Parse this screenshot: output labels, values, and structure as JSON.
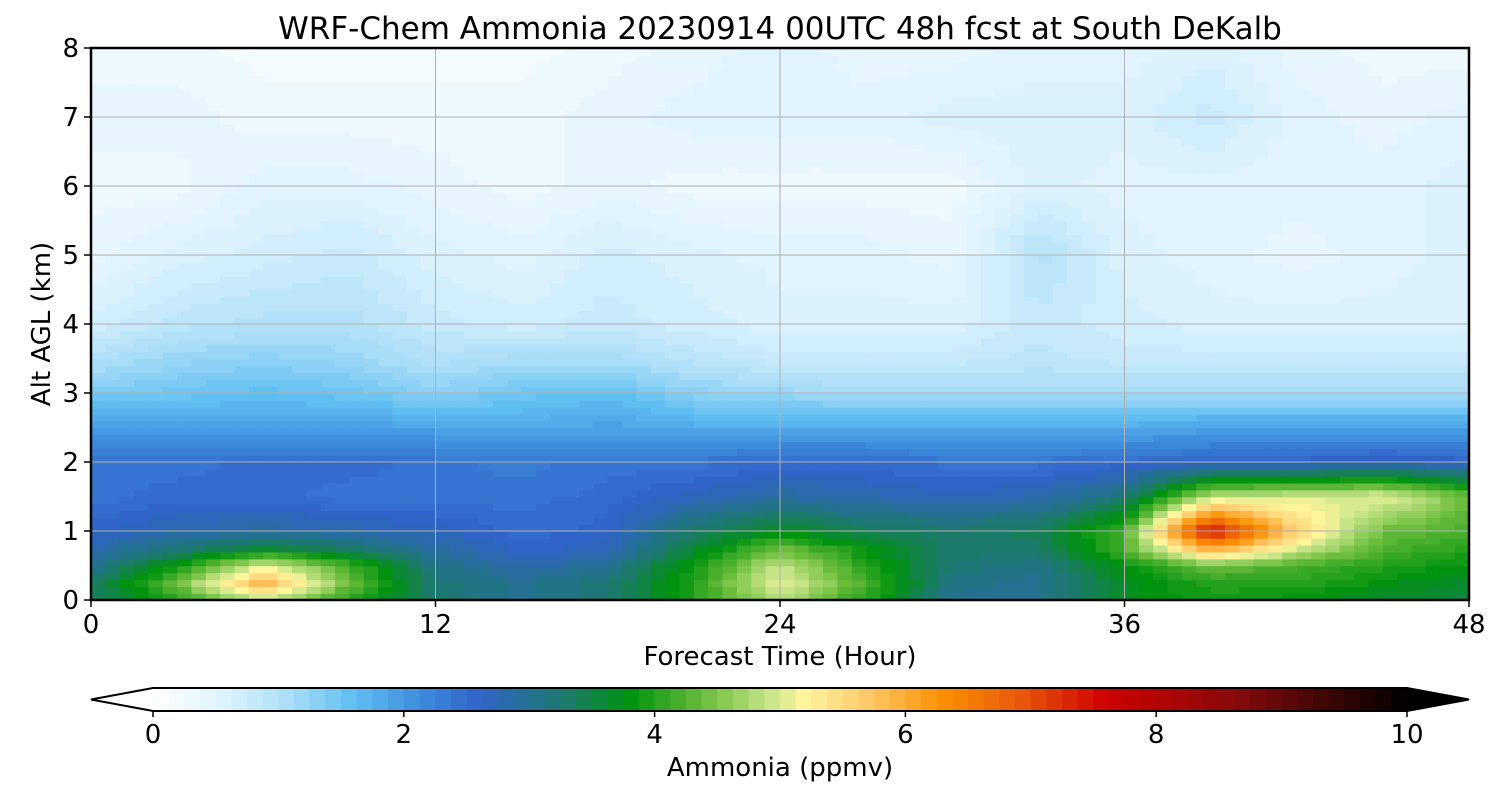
{
  "chart_data": {
    "type": "heatmap",
    "title": "WRF-Chem Ammonia  20230914 00UTC 48h fcst at South DeKalb",
    "xlabel": "Forecast Time (Hour)",
    "ylabel": "Alt AGL (km)",
    "xlim": [
      0,
      48
    ],
    "ylim": [
      0,
      8
    ],
    "xticks": [
      0,
      12,
      24,
      36,
      48
    ],
    "yticks": [
      0,
      1,
      2,
      3,
      4,
      5,
      6,
      7,
      8
    ],
    "grid": true,
    "colorbar": {
      "label": "Ammonia  (ppmv)",
      "range": [
        0,
        10
      ],
      "ticks": [
        0,
        2,
        4,
        6,
        8,
        10
      ],
      "extend": "both",
      "stops": [
        {
          "v": 0.0,
          "c": "#ffffff"
        },
        {
          "v": 0.6,
          "c": "#dbf2fd"
        },
        {
          "v": 1.1,
          "c": "#a8dcf7"
        },
        {
          "v": 1.6,
          "c": "#5fbef1"
        },
        {
          "v": 2.1,
          "c": "#3f8ede"
        },
        {
          "v": 2.6,
          "c": "#3064c8"
        },
        {
          "v": 3.3,
          "c": "#1c7a6a"
        },
        {
          "v": 3.8,
          "c": "#00930f"
        },
        {
          "v": 4.4,
          "c": "#6cbd3c"
        },
        {
          "v": 4.9,
          "c": "#c5e488"
        },
        {
          "v": 5.2,
          "c": "#fff59d"
        },
        {
          "v": 5.7,
          "c": "#fec96a"
        },
        {
          "v": 6.3,
          "c": "#fb8f00"
        },
        {
          "v": 6.9,
          "c": "#e95a0c"
        },
        {
          "v": 7.6,
          "c": "#cd0000"
        },
        {
          "v": 8.6,
          "c": "#8a0a0a"
        },
        {
          "v": 9.4,
          "c": "#3a0505"
        },
        {
          "v": 10.0,
          "c": "#000000"
        }
      ]
    },
    "field": {
      "x_hours": [
        0,
        3,
        6,
        9,
        12,
        15,
        18,
        21,
        24,
        27,
        30,
        33,
        36,
        39,
        42,
        45,
        48
      ],
      "y_km": [
        0,
        0.25,
        0.5,
        0.75,
        1.0,
        1.5,
        2.0,
        2.5,
        3.0,
        3.5,
        4.0,
        5.0,
        6.0,
        7.0,
        8.0
      ],
      "values_ppmv": [
        [
          3.3,
          4.0,
          4.9,
          4.0,
          3.3,
          3.0,
          3.2,
          4.0,
          4.8,
          4.0,
          3.0,
          3.0,
          3.7,
          3.9,
          3.8,
          3.6,
          3.5
        ],
        [
          3.3,
          4.4,
          5.9,
          4.4,
          3.2,
          3.0,
          3.2,
          4.0,
          5.1,
          4.2,
          3.1,
          3.0,
          3.7,
          4.0,
          4.0,
          3.8,
          3.6
        ],
        [
          3.0,
          3.9,
          5.1,
          4.2,
          3.1,
          2.8,
          3.0,
          3.9,
          4.9,
          4.0,
          3.2,
          3.1,
          3.8,
          4.4,
          4.2,
          4.0,
          3.8
        ],
        [
          2.8,
          3.2,
          3.6,
          3.3,
          2.9,
          2.6,
          2.7,
          3.6,
          4.4,
          3.8,
          3.3,
          3.3,
          4.2,
          6.0,
          5.0,
          4.2,
          4.0
        ],
        [
          2.6,
          2.8,
          2.9,
          2.8,
          2.7,
          2.5,
          2.6,
          3.3,
          3.7,
          3.4,
          3.3,
          3.4,
          4.2,
          7.6,
          5.6,
          4.4,
          4.2
        ],
        [
          2.4,
          2.5,
          2.5,
          2.4,
          2.4,
          2.4,
          2.5,
          2.7,
          2.9,
          2.8,
          2.7,
          2.8,
          3.2,
          4.9,
          5.0,
          5.1,
          4.4
        ],
        [
          2.4,
          2.4,
          2.5,
          2.5,
          2.4,
          2.3,
          2.4,
          2.4,
          2.5,
          2.5,
          2.4,
          2.4,
          2.5,
          2.6,
          2.6,
          2.7,
          2.6
        ],
        [
          2.0,
          1.9,
          1.9,
          1.9,
          1.9,
          1.8,
          1.9,
          1.8,
          1.8,
          1.8,
          1.8,
          1.8,
          1.8,
          1.9,
          1.9,
          1.9,
          1.9
        ],
        [
          1.4,
          1.5,
          1.6,
          1.5,
          1.3,
          1.5,
          1.6,
          1.3,
          1.2,
          1.1,
          1.1,
          1.1,
          1.1,
          1.1,
          1.1,
          1.1,
          1.1
        ],
        [
          1.0,
          1.2,
          1.3,
          1.2,
          1.0,
          1.1,
          1.1,
          0.9,
          0.8,
          0.8,
          0.8,
          0.9,
          0.8,
          0.8,
          0.8,
          0.8,
          0.8
        ],
        [
          0.7,
          0.9,
          1.0,
          1.0,
          0.8,
          0.7,
          0.8,
          0.7,
          0.6,
          0.6,
          0.6,
          0.8,
          0.7,
          0.6,
          0.6,
          0.6,
          0.6
        ],
        [
          0.4,
          0.6,
          0.7,
          0.8,
          0.6,
          0.5,
          0.7,
          0.6,
          0.5,
          0.5,
          0.4,
          1.0,
          0.6,
          0.5,
          0.4,
          0.5,
          0.6
        ],
        [
          0.3,
          0.3,
          0.5,
          0.5,
          0.4,
          0.3,
          0.4,
          0.3,
          0.3,
          0.3,
          0.3,
          0.6,
          0.5,
          0.5,
          0.5,
          0.5,
          0.6
        ],
        [
          0.4,
          0.4,
          0.3,
          0.3,
          0.3,
          0.3,
          0.4,
          0.5,
          0.5,
          0.5,
          0.6,
          0.6,
          0.6,
          0.8,
          0.5,
          0.4,
          0.5
        ],
        [
          0.3,
          0.3,
          0.2,
          0.2,
          0.2,
          0.2,
          0.3,
          0.4,
          0.5,
          0.4,
          0.4,
          0.5,
          0.5,
          0.6,
          0.4,
          0.3,
          0.3
        ]
      ]
    }
  }
}
